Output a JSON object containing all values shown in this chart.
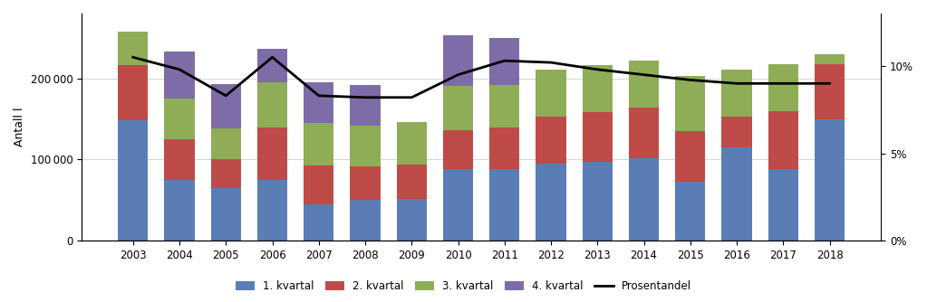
{
  "years": [
    2003,
    2004,
    2005,
    2006,
    2007,
    2008,
    2009,
    2010,
    2011,
    2012,
    2013,
    2014,
    2015,
    2016,
    2017,
    2018
  ],
  "q1": [
    148000,
    75000,
    65000,
    75000,
    45000,
    50000,
    52000,
    88000,
    88000,
    95000,
    97000,
    102000,
    73000,
    115000,
    88000,
    150000
  ],
  "q2": [
    68000,
    50000,
    35000,
    65000,
    48000,
    42000,
    42000,
    48000,
    52000,
    58000,
    62000,
    62000,
    62000,
    38000,
    72000,
    68000
  ],
  "q3": [
    42000,
    50000,
    38000,
    55000,
    52000,
    50000,
    52000,
    55000,
    52000,
    58000,
    58000,
    58000,
    68000,
    58000,
    58000,
    12000
  ],
  "q4": [
    0,
    58000,
    55000,
    42000,
    50000,
    50000,
    0,
    62000,
    58000,
    0,
    0,
    0,
    0,
    0,
    0,
    0
  ],
  "prosentandel": [
    0.105,
    0.098,
    0.083,
    0.105,
    0.083,
    0.082,
    0.082,
    0.095,
    0.103,
    0.102,
    0.098,
    0.095,
    0.092,
    0.09,
    0.09,
    0.09
  ],
  "color_q1": "#5b7db5",
  "color_q2": "#be4b48",
  "color_q3": "#8fac57",
  "color_q4": "#7e6ca8",
  "color_line": "#000000",
  "ylabel_left": "Antall l",
  "ylim_left": [
    0,
    280000
  ],
  "ylim_right": [
    0,
    0.13
  ],
  "figsize": [
    10.23,
    3.34
  ],
  "dpi": 100,
  "legend_labels": [
    "1. kvartal",
    "2. kvartal",
    "3. kvartal",
    "4. kvartal",
    "Prosentandel"
  ]
}
